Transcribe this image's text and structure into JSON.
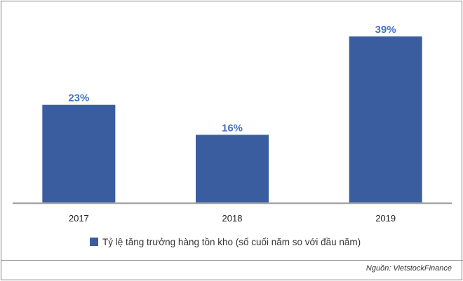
{
  "chart_data": {
    "type": "bar",
    "categories": [
      "2017",
      "2018",
      "2019"
    ],
    "series": [
      {
        "name": "Tỷ lệ tăng trưởng hàng tồn kho (số cuối năm so với đầu năm)",
        "values": [
          23,
          16,
          39
        ],
        "value_labels": [
          "23%",
          "16%",
          "39%"
        ]
      }
    ],
    "ylim": [
      0,
      39
    ],
    "grid": false,
    "legend_position": "bottom"
  },
  "colors": {
    "bar": "#3a5da0",
    "label": "#4472c4",
    "axis": "#a6a6a6"
  },
  "source_text": "Nguồn: VietstockFinance"
}
